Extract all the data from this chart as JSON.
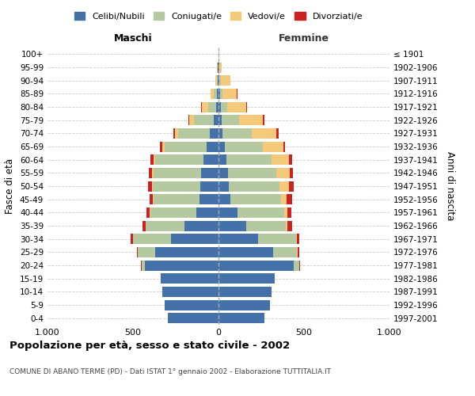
{
  "age_groups": [
    "0-4",
    "5-9",
    "10-14",
    "15-19",
    "20-24",
    "25-29",
    "30-34",
    "35-39",
    "40-44",
    "45-49",
    "50-54",
    "55-59",
    "60-64",
    "65-69",
    "70-74",
    "75-79",
    "80-84",
    "85-89",
    "90-94",
    "95-99",
    "100+"
  ],
  "birth_years": [
    "1997-2001",
    "1992-1996",
    "1987-1991",
    "1982-1986",
    "1977-1981",
    "1972-1976",
    "1967-1971",
    "1962-1966",
    "1957-1961",
    "1952-1956",
    "1947-1951",
    "1942-1946",
    "1937-1941",
    "1932-1936",
    "1927-1931",
    "1922-1926",
    "1917-1921",
    "1912-1916",
    "1907-1911",
    "1902-1906",
    "≤ 1901"
  ],
  "male_celibi": [
    295,
    315,
    330,
    340,
    430,
    370,
    280,
    200,
    130,
    110,
    105,
    100,
    90,
    70,
    50,
    30,
    12,
    8,
    5,
    3,
    2
  ],
  "male_coniugati": [
    0,
    0,
    0,
    0,
    20,
    100,
    220,
    225,
    270,
    270,
    280,
    280,
    280,
    245,
    185,
    115,
    50,
    18,
    5,
    2,
    0
  ],
  "male_vedovi": [
    0,
    0,
    0,
    0,
    0,
    0,
    1,
    2,
    3,
    3,
    5,
    8,
    10,
    15,
    20,
    25,
    35,
    20,
    8,
    3,
    0
  ],
  "male_divorziati": [
    0,
    0,
    0,
    0,
    5,
    8,
    12,
    18,
    20,
    22,
    20,
    18,
    18,
    12,
    10,
    8,
    3,
    2,
    0,
    0,
    0
  ],
  "female_celibi": [
    270,
    300,
    310,
    330,
    440,
    320,
    230,
    160,
    110,
    70,
    60,
    55,
    45,
    35,
    25,
    20,
    12,
    8,
    5,
    3,
    2
  ],
  "female_coniugati": [
    0,
    0,
    0,
    0,
    30,
    140,
    225,
    235,
    275,
    295,
    295,
    285,
    265,
    225,
    170,
    100,
    40,
    15,
    8,
    2,
    0
  ],
  "female_vedovi": [
    0,
    0,
    0,
    0,
    2,
    3,
    5,
    10,
    20,
    35,
    55,
    75,
    100,
    120,
    145,
    140,
    110,
    85,
    55,
    15,
    2
  ],
  "female_divorziati": [
    0,
    0,
    0,
    0,
    3,
    8,
    12,
    25,
    22,
    30,
    30,
    20,
    20,
    10,
    12,
    8,
    5,
    3,
    0,
    0,
    0
  ],
  "colors": {
    "celibi": "#4472a8",
    "coniugati": "#b5c9a0",
    "vedovi": "#f5c97a",
    "divorziati": "#cc2222"
  },
  "title": "Popolazione per età, sesso e stato civile - 2002",
  "subtitle": "COMUNE DI ABANO TERME (PD) - Dati ISTAT 1° gennaio 2002 - Elaborazione TUTTITALIA.IT",
  "xlabel_left": "Maschi",
  "xlabel_right": "Femmine",
  "ylabel_left": "Fasce di età",
  "ylabel_right": "Anni di nascita",
  "xlim": 1000,
  "xtick_labels": [
    "1.000",
    "500",
    "0",
    "500",
    "1.000"
  ],
  "legend_labels": [
    "Celibi/Nubili",
    "Coniugati/e",
    "Vedovi/e",
    "Divorziati/e"
  ],
  "bg_color": "#ffffff",
  "grid_color": "#cccccc"
}
